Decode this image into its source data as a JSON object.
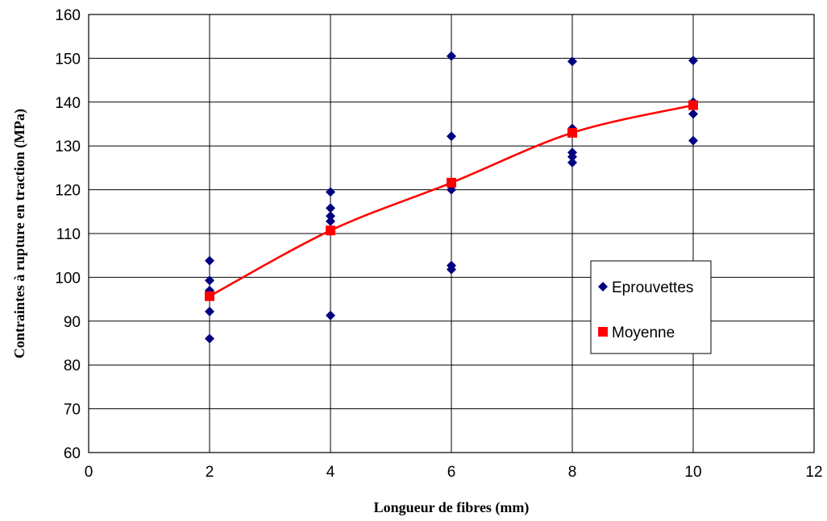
{
  "chart_data": {
    "type": "scatter",
    "title": "",
    "xlabel": "Longueur de fibres (mm)",
    "ylabel": "Contraintes à rupture en traction (MPa)",
    "xlim": [
      0,
      12
    ],
    "ylim": [
      60,
      160
    ],
    "x_ticks": [
      0,
      2,
      4,
      6,
      8,
      10,
      12
    ],
    "y_ticks": [
      60,
      70,
      80,
      90,
      100,
      110,
      120,
      130,
      140,
      150,
      160
    ],
    "grid": true,
    "legend_position": "right",
    "series": [
      {
        "name": "Eprouvettes",
        "marker": "diamond",
        "color": "#000080",
        "points": [
          [
            2,
            103.8
          ],
          [
            2,
            99.3
          ],
          [
            2,
            97.0
          ],
          [
            2,
            95.8
          ],
          [
            2,
            92.2
          ],
          [
            2,
            86.0
          ],
          [
            4,
            119.5
          ],
          [
            4,
            115.8
          ],
          [
            4,
            114.0
          ],
          [
            4,
            112.8
          ],
          [
            4,
            110.5
          ],
          [
            4,
            91.3
          ],
          [
            6,
            150.5
          ],
          [
            6,
            132.2
          ],
          [
            6,
            121.0
          ],
          [
            6,
            120.0
          ],
          [
            6,
            102.7
          ],
          [
            6,
            101.8
          ],
          [
            8,
            149.3
          ],
          [
            8,
            134.0
          ],
          [
            8,
            128.5
          ],
          [
            8,
            127.5
          ],
          [
            8,
            126.2
          ],
          [
            10,
            149.5
          ],
          [
            10,
            140.0
          ],
          [
            10,
            137.3
          ],
          [
            10,
            131.2
          ]
        ]
      },
      {
        "name": "Moyenne",
        "marker": "square",
        "color": "#ff0000",
        "points": [
          [
            2,
            95.7
          ],
          [
            4,
            110.7
          ],
          [
            6,
            121.6
          ],
          [
            8,
            133.0
          ],
          [
            10,
            139.3
          ]
        ]
      }
    ]
  }
}
